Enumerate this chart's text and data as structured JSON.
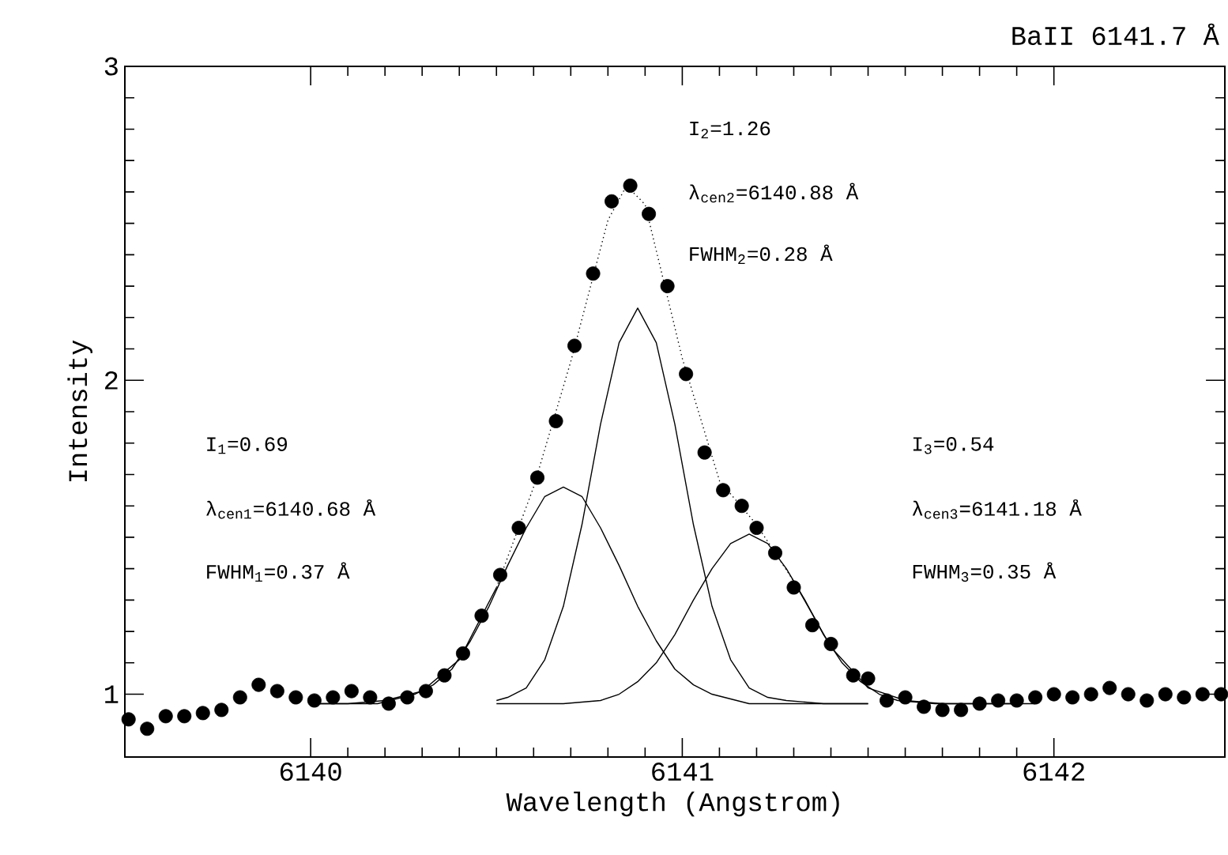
{
  "chart_data": {
    "type": "scatter",
    "title": "BaII 6141.7 Å",
    "xlabel": "Wavelength (Angstrom)",
    "ylabel": "Intensity",
    "xlim": [
      6139.5,
      6142.46
    ],
    "ylim": [
      0.8,
      3
    ],
    "xticks": [
      6140,
      6141,
      6142
    ],
    "yticks": [
      1,
      2,
      3
    ],
    "annotations": [
      "I$_{1}$=0.69",
      "λ$_{cen1}$=6140.68 Å",
      "FWHM$_{1}$=0.37 Å",
      "I$_{2}$=1.26",
      "λ$_{cen2}$=6140.88 Å",
      "FWHM$_{2}$=0.28 Å",
      "I$_{3}$=0.54",
      "λ$_{cen3}$=6141.18 Å",
      "FWHM$_{3}$=0.35 Å"
    ],
    "series": [
      {
        "marker": "circle",
        "color": "#000000",
        "x": [
          6139.51,
          6139.56,
          6139.61,
          6139.66,
          6139.71,
          6139.76,
          6139.81,
          6139.86,
          6139.91,
          6139.96,
          6140.01,
          6140.06,
          6140.11,
          6140.16,
          6140.21,
          6140.26,
          6140.31,
          6140.36,
          6140.41,
          6140.46,
          6140.51,
          6140.56,
          6140.61,
          6140.66,
          6140.71,
          6140.76,
          6140.81,
          6140.86,
          6140.91,
          6140.96,
          6141.01,
          6141.06,
          6141.11,
          6141.16,
          6141.2,
          6141.25,
          6141.3,
          6141.35,
          6141.4,
          6141.46,
          6141.5,
          6141.55,
          6141.6,
          6141.65,
          6141.7,
          6141.75,
          6141.8,
          6141.85,
          6141.9,
          6141.95,
          6142.0,
          6142.05,
          6142.1,
          6142.15,
          6142.2,
          6142.25,
          6142.3,
          6142.35,
          6142.4,
          6142.45
        ],
        "values": [
          0.92,
          0.89,
          0.93,
          0.93,
          0.94,
          0.95,
          0.99,
          1.03,
          1.01,
          0.99,
          0.98,
          0.99,
          1.01,
          0.99,
          0.97,
          0.99,
          1.01,
          1.06,
          1.13,
          1.25,
          1.38,
          1.53,
          1.69,
          1.87,
          2.11,
          2.34,
          2.57,
          2.62,
          2.53,
          2.3,
          2.02,
          1.77,
          1.65,
          1.6,
          1.53,
          1.45,
          1.34,
          1.22,
          1.16,
          1.06,
          1.05,
          0.98,
          0.99,
          0.96,
          0.95,
          0.95,
          0.97,
          0.98,
          0.98,
          0.99,
          1.0,
          0.99,
          1.0,
          1.02,
          1.0,
          0.98,
          1.0,
          0.99,
          1.0,
          1.0
        ]
      },
      {
        "type": "line",
        "marker": "none",
        "line_style": "solid",
        "color": "#000000",
        "x": [
          6140.0,
          6140.1,
          6140.2,
          6140.3,
          6140.4,
          6140.5
        ],
        "values": [
          0.97,
          0.97,
          0.98,
          1.01,
          1.11,
          1.34
        ]
      },
      {
        "type": "line",
        "marker": "none",
        "line_style": "dotted",
        "color": "#000000",
        "x": [
          6140.5,
          6140.6,
          6140.7,
          6140.8,
          6140.85,
          6140.9,
          6141.0,
          6141.1,
          6141.2,
          6141.3
        ],
        "values": [
          1.34,
          1.66,
          2.06,
          2.51,
          2.62,
          2.56,
          2.07,
          1.68,
          1.54,
          1.36
        ]
      },
      {
        "type": "line",
        "marker": "none",
        "line_style": "solid",
        "color": "#000000",
        "x": [
          6141.3,
          6141.4,
          6141.5,
          6141.6,
          6141.7,
          6141.8,
          6141.95
        ],
        "values": [
          1.36,
          1.15,
          1.02,
          0.98,
          0.97,
          0.97,
          0.97
        ]
      },
      {
        "type": "line",
        "marker": "none",
        "line_style": "solid",
        "color": "#000000",
        "x": [
          6140.0,
          6140.08,
          6140.18,
          6140.28,
          6140.33,
          6140.38,
          6140.43,
          6140.48,
          6140.53,
          6140.58,
          6140.63,
          6140.68,
          6140.73,
          6140.78,
          6140.83,
          6140.88,
          6140.93,
          6140.98,
          6141.03,
          6141.08,
          6141.18,
          6141.28,
          6141.5
        ],
        "values": [
          0.97,
          0.97,
          0.97,
          1.0,
          1.03,
          1.08,
          1.17,
          1.28,
          1.41,
          1.53,
          1.63,
          1.66,
          1.63,
          1.53,
          1.41,
          1.28,
          1.17,
          1.08,
          1.03,
          1.0,
          0.97,
          0.97,
          0.97
        ]
      },
      {
        "type": "line",
        "marker": "none",
        "line_style": "solid",
        "color": "#000000",
        "x": [
          6140.5,
          6140.53,
          6140.58,
          6140.63,
          6140.68,
          6140.73,
          6140.78,
          6140.83,
          6140.88,
          6140.93,
          6140.98,
          6141.03,
          6141.08,
          6141.13,
          6141.18,
          6141.23,
          6141.28,
          6141.38,
          6141.5
        ],
        "values": [
          0.98,
          0.99,
          1.02,
          1.11,
          1.28,
          1.54,
          1.86,
          2.12,
          2.23,
          2.12,
          1.86,
          1.54,
          1.28,
          1.11,
          1.02,
          0.99,
          0.98,
          0.97,
          0.97
        ]
      },
      {
        "type": "line",
        "marker": "none",
        "line_style": "solid",
        "color": "#000000",
        "x": [
          6140.5,
          6140.68,
          6140.78,
          6140.83,
          6140.88,
          6140.93,
          6140.98,
          6141.03,
          6141.08,
          6141.13,
          6141.18,
          6141.23,
          6141.28,
          6141.33,
          6141.38,
          6141.43,
          6141.48,
          6141.53,
          6141.58,
          6141.68,
          6141.9
        ],
        "values": [
          0.97,
          0.97,
          0.98,
          1.0,
          1.04,
          1.1,
          1.19,
          1.3,
          1.4,
          1.48,
          1.51,
          1.48,
          1.4,
          1.3,
          1.19,
          1.1,
          1.04,
          1.0,
          0.98,
          0.97,
          0.97
        ]
      }
    ]
  }
}
